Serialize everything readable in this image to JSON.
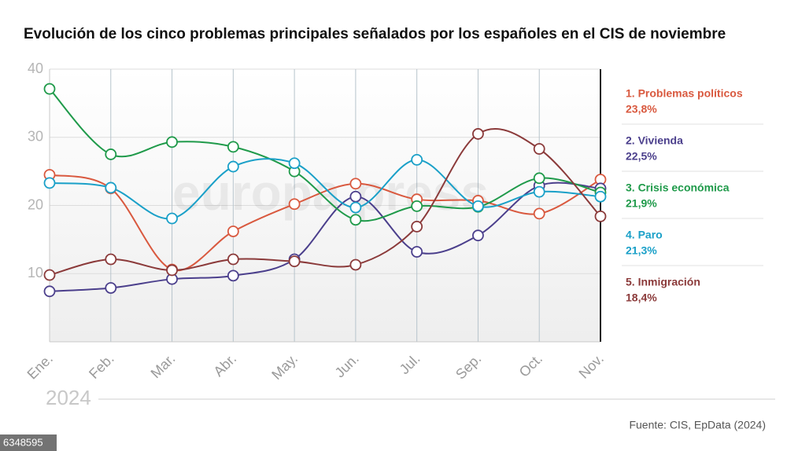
{
  "chart_data": {
    "type": "line",
    "title": "Evolución de los cinco problemas principales señalados por los españoles en el CIS de noviembre",
    "categories": [
      "Ene.",
      "Feb.",
      "Mar.",
      "Abr.",
      "May.",
      "Jun.",
      "Jul.",
      "Sep.",
      "Oct.",
      "Nov."
    ],
    "series": [
      {
        "name": "1.  Problemas políticos",
        "color": "#d9593f",
        "values": [
          24.5,
          22.5,
          10.6,
          16.2,
          20.2,
          23.2,
          20.9,
          20.7,
          18.8,
          23.8
        ],
        "value_labels": [
          null,
          null,
          null,
          null,
          null,
          null,
          null,
          null,
          null,
          "23,8%"
        ]
      },
      {
        "name": "2. Vivienda",
        "color": "#4b3f8c",
        "values": [
          7.4,
          7.9,
          9.2,
          9.7,
          12.1,
          21.3,
          13.2,
          15.6,
          22.9,
          22.5
        ],
        "value_labels": [
          null,
          null,
          null,
          null,
          null,
          null,
          null,
          null,
          null,
          "22,5%"
        ]
      },
      {
        "name": "3. Crisis económica",
        "color": "#1f9a4a",
        "values": [
          37.1,
          27.5,
          29.3,
          28.6,
          25.0,
          17.9,
          19.9,
          19.8,
          24.0,
          21.9
        ],
        "value_labels": [
          null,
          null,
          null,
          null,
          null,
          null,
          null,
          null,
          null,
          "21,9%"
        ]
      },
      {
        "name": "4. Paro",
        "color": "#1aa0c8",
        "values": [
          23.3,
          22.6,
          18.1,
          25.7,
          26.2,
          19.7,
          26.7,
          19.9,
          22.0,
          21.3
        ],
        "value_labels": [
          null,
          null,
          null,
          null,
          null,
          null,
          null,
          null,
          null,
          "21,3%"
        ]
      },
      {
        "name": "5. Inmigración",
        "color": "#8b3a3a",
        "values": [
          9.8,
          12.1,
          10.5,
          12.1,
          11.8,
          11.3,
          16.9,
          30.5,
          28.3,
          18.4
        ],
        "value_labels": [
          null,
          null,
          null,
          null,
          null,
          null,
          null,
          null,
          null,
          "18,4%"
        ]
      }
    ],
    "ylim": [
      0,
      40
    ],
    "yticks": [
      10,
      20,
      30,
      40
    ],
    "grid": true,
    "year_label": "2024",
    "source": "Fuente: CIS, EpData (2024)",
    "watermark": "europa press",
    "image_id": "6348595"
  }
}
